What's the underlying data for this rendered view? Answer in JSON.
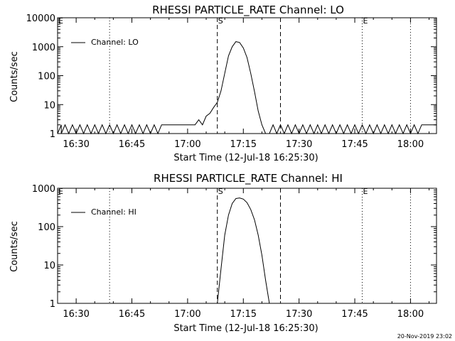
{
  "footer": {
    "timestamp": "20-Nov-2019 23:02"
  },
  "chart_data": [
    {
      "type": "line",
      "title": "RHESSI PARTICLE_RATE Channel: LO",
      "xlabel": "Start Time (12-Jul-18 16:25:30)",
      "ylabel": "Counts/sec",
      "xlim": [
        "16:25",
        "18:07"
      ],
      "ylim": [
        1,
        10000
      ],
      "yscale": "log",
      "x_ticks": [
        "16:30",
        "16:45",
        "17:00",
        "17:15",
        "17:30",
        "17:45",
        "18:00"
      ],
      "y_ticks": [
        1,
        10,
        100,
        1000,
        10000
      ],
      "y_tick_labels": [
        "1",
        "10",
        "100",
        "1000",
        "10000"
      ],
      "legend": {
        "position": "top-left",
        "entries": [
          "Channel: LO"
        ]
      },
      "markers": [
        {
          "label": "E",
          "time": "16:25",
          "style": "none"
        },
        {
          "label": "",
          "time": "16:39",
          "style": "dotted"
        },
        {
          "label": "S",
          "time": "17:08",
          "style": "dashed"
        },
        {
          "label": "",
          "time": "17:25",
          "style": "dashed"
        },
        {
          "label": "E",
          "time": "17:47",
          "style": "dotted"
        },
        {
          "label": "",
          "time": "18:00",
          "style": "dotted"
        }
      ],
      "series": [
        {
          "name": "Channel: LO",
          "x": [
            "16:25",
            "16:26",
            "16:26",
            "16:27",
            "16:28",
            "16:29",
            "16:30",
            "16:31",
            "16:32",
            "16:33",
            "16:34",
            "16:35",
            "16:36",
            "16:37",
            "16:38",
            "16:39",
            "16:40",
            "16:41",
            "16:42",
            "16:43",
            "16:44",
            "16:45",
            "16:46",
            "16:47",
            "16:48",
            "16:49",
            "16:50",
            "16:51",
            "16:52",
            "16:53",
            "16:54",
            "16:55",
            "16:56",
            "16:57",
            "16:58",
            "16:59",
            "17:00",
            "17:01",
            "17:02",
            "17:03",
            "17:04",
            "17:05",
            "17:06",
            "17:07",
            "17:08",
            "17:09",
            "17:10",
            "17:11",
            "17:12",
            "17:13",
            "17:14",
            "17:15",
            "17:16",
            "17:17",
            "17:18",
            "17:19",
            "17:20",
            "17:21",
            "17:22",
            "17:23",
            "17:24",
            "17:25",
            "17:26",
            "17:27",
            "17:28",
            "17:29",
            "17:30",
            "17:31",
            "17:32",
            "17:33",
            "17:34",
            "17:35",
            "17:36",
            "17:37",
            "17:38",
            "17:39",
            "17:40",
            "17:41",
            "17:42",
            "17:43",
            "17:44",
            "17:45",
            "17:46",
            "17:47",
            "17:48",
            "17:49",
            "17:50",
            "17:51",
            "17:52",
            "17:53",
            "17:54",
            "17:55",
            "17:56",
            "17:57",
            "17:58",
            "17:59",
            "18:00",
            "18:01",
            "18:02",
            "18:03",
            "18:04",
            "18:05",
            "18:06",
            "18:07"
          ],
          "y": [
            1,
            2,
            1,
            2,
            1,
            2,
            1,
            2,
            1,
            2,
            1,
            2,
            1,
            2,
            1,
            2,
            1,
            2,
            1,
            2,
            1,
            2,
            1,
            2,
            1,
            2,
            1,
            2,
            1,
            2,
            2,
            2,
            2,
            2,
            2,
            2,
            2,
            2,
            2,
            3,
            2,
            4,
            5,
            8,
            12,
            30,
            120,
            480,
            1000,
            1500,
            1400,
            900,
            420,
            120,
            28,
            6,
            2,
            1,
            1,
            2,
            1,
            2,
            1,
            2,
            1,
            2,
            1,
            2,
            1,
            2,
            1,
            2,
            1,
            2,
            1,
            2,
            1,
            2,
            1,
            2,
            1,
            2,
            1,
            2,
            1,
            2,
            1,
            2,
            1,
            2,
            1,
            2,
            1,
            2,
            1,
            2,
            1,
            2,
            1,
            2,
            2,
            2,
            2,
            2
          ]
        }
      ]
    },
    {
      "type": "line",
      "title": "RHESSI PARTICLE_RATE Channel: HI",
      "xlabel": "Start Time (12-Jul-18 16:25:30)",
      "ylabel": "Counts/sec",
      "xlim": [
        "16:25",
        "18:07"
      ],
      "ylim": [
        1,
        1000
      ],
      "yscale": "log",
      "x_ticks": [
        "16:30",
        "16:45",
        "17:00",
        "17:15",
        "17:30",
        "17:45",
        "18:00"
      ],
      "y_ticks": [
        1,
        10,
        100,
        1000
      ],
      "y_tick_labels": [
        "1",
        "10",
        "100",
        "1000"
      ],
      "legend": {
        "position": "top-left",
        "entries": [
          "Channel: HI"
        ]
      },
      "markers": [
        {
          "label": "E",
          "time": "16:25",
          "style": "none"
        },
        {
          "label": "",
          "time": "16:39",
          "style": "dotted"
        },
        {
          "label": "S",
          "time": "17:08",
          "style": "dashed"
        },
        {
          "label": "",
          "time": "17:25",
          "style": "dashed"
        },
        {
          "label": "E",
          "time": "17:47",
          "style": "dotted"
        },
        {
          "label": "",
          "time": "18:00",
          "style": "dotted"
        }
      ],
      "series": [
        {
          "name": "Channel: HI",
          "x": [
            "17:08",
            "17:09",
            "17:10",
            "17:11",
            "17:12",
            "17:13",
            "17:14",
            "17:15",
            "17:16",
            "17:17",
            "17:18",
            "17:19",
            "17:20",
            "17:21",
            "17:22"
          ],
          "y": [
            1,
            8,
            60,
            200,
            400,
            540,
            560,
            520,
            420,
            280,
            150,
            60,
            18,
            4,
            1
          ]
        }
      ]
    }
  ]
}
